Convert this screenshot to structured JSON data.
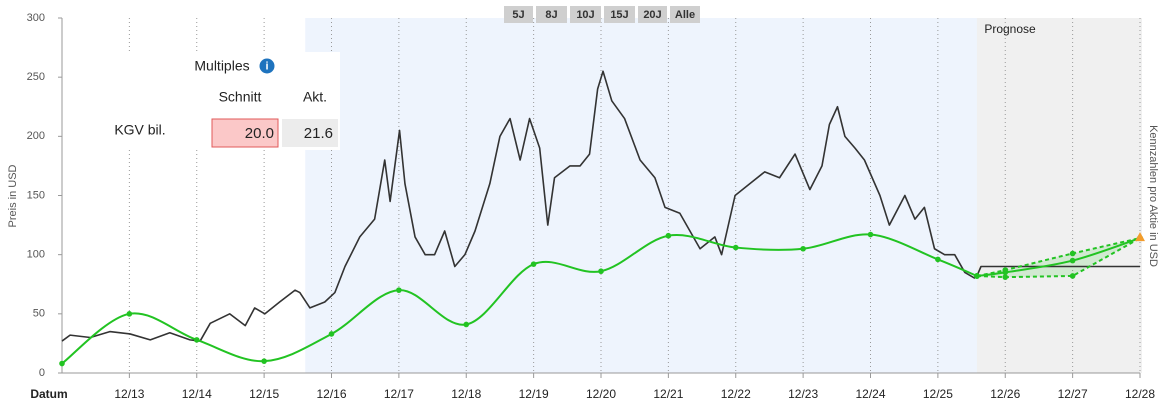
{
  "chart_data": {
    "type": "line",
    "y_label": "Preis in USD",
    "y2_label": "Kennzahlen pro Aktie in USD",
    "x_label": "Datum",
    "forecast_label": "Prognose",
    "range_buttons": [
      "5J",
      "8J",
      "10J",
      "15J",
      "20J",
      "Alle"
    ],
    "multiples": {
      "title": "Multiples",
      "headers": [
        "Schnitt",
        "Akt."
      ],
      "row_label": "KGV bil.",
      "cells": [
        "20.0",
        "21.6"
      ]
    },
    "xlim": [
      2012.92,
      2028.92
    ],
    "ylim": [
      0,
      300
    ],
    "yticks": [
      0,
      50,
      100,
      150,
      200,
      250,
      300
    ],
    "xticks": [
      {
        "value": 2013.92,
        "label": "12/13"
      },
      {
        "value": 2014.92,
        "label": "12/14"
      },
      {
        "value": 2015.92,
        "label": "12/15"
      },
      {
        "value": 2016.92,
        "label": "12/16"
      },
      {
        "value": 2017.92,
        "label": "12/17"
      },
      {
        "value": 2018.92,
        "label": "12/18"
      },
      {
        "value": 2019.92,
        "label": "12/19"
      },
      {
        "value": 2020.92,
        "label": "12/20"
      },
      {
        "value": 2021.92,
        "label": "12/21"
      },
      {
        "value": 2022.92,
        "label": "12/22"
      },
      {
        "value": 2023.92,
        "label": "12/23"
      },
      {
        "value": 2024.92,
        "label": "12/24"
      },
      {
        "value": 2025.92,
        "label": "12/25"
      },
      {
        "value": 2026.92,
        "label": "12/26"
      },
      {
        "value": 2027.92,
        "label": "12/27"
      },
      {
        "value": 2028.92,
        "label": "12/28"
      }
    ],
    "shaded_range": [
      2016.53,
      2026.5
    ],
    "forecast_range": [
      2026.5,
      2028.92
    ],
    "series": [
      {
        "color": "#333333",
        "dash": false,
        "smooth": false,
        "markers": false,
        "x": [
          2012.92,
          2013.04,
          2013.34,
          2013.63,
          2013.93,
          2014.23,
          2014.52,
          2014.82,
          2014.97,
          2015.12,
          2015.41,
          2015.64,
          2015.78,
          2015.93,
          2016.15,
          2016.38,
          2016.45,
          2016.6,
          2016.82,
          2016.97,
          2017.12,
          2017.34,
          2017.56,
          2017.71,
          2017.79,
          2017.93,
          2018.01,
          2018.16,
          2018.31,
          2018.45,
          2018.6,
          2018.75,
          2018.9,
          2019.05,
          2019.27,
          2019.42,
          2019.57,
          2019.72,
          2019.86,
          2020.01,
          2020.13,
          2020.23,
          2020.46,
          2020.61,
          2020.75,
          2020.87,
          2020.95,
          2021.08,
          2021.27,
          2021.5,
          2021.72,
          2021.87,
          2022.09,
          2022.24,
          2022.39,
          2022.61,
          2022.71,
          2022.91,
          2023.13,
          2023.35,
          2023.57,
          2023.8,
          2024.02,
          2024.2,
          2024.31,
          2024.43,
          2024.54,
          2024.69,
          2024.83,
          2025.06,
          2025.2,
          2025.43,
          2025.58,
          2025.72,
          2025.87,
          2026.02,
          2026.17,
          2026.32,
          2026.47
        ],
        "values": [
          27,
          32,
          30,
          35,
          33,
          28,
          34,
          28,
          27,
          42,
          50,
          40,
          55,
          50,
          60,
          70,
          68,
          55,
          60,
          68,
          90,
          115,
          130,
          180,
          145,
          205,
          160,
          115,
          100,
          100,
          120,
          90,
          100,
          120,
          160,
          200,
          215,
          180,
          215,
          190,
          125,
          165,
          175,
          175,
          185,
          240,
          255,
          230,
          215,
          180,
          165,
          140,
          135,
          120,
          105,
          115,
          100,
          150,
          160,
          170,
          165,
          185,
          155,
          175,
          210,
          225,
          200,
          190,
          180,
          150,
          125,
          150,
          130,
          140,
          105,
          100,
          100,
          85,
          80
        ]
      },
      {
        "color": "#333333",
        "dash": false,
        "smooth": false,
        "markers": false,
        "x": [
          2026.5,
          2026.56,
          2028.92
        ],
        "values": [
          82,
          90,
          90
        ]
      },
      {
        "color": "#22c322",
        "dash": false,
        "smooth": true,
        "markers": true,
        "x": [
          2012.92,
          2013.92,
          2014.92,
          2015.92,
          2016.92,
          2017.92,
          2018.92,
          2019.92,
          2020.92,
          2021.92,
          2022.92,
          2023.92,
          2024.92,
          2025.92,
          2026.5
        ],
        "values": [
          8,
          50,
          28,
          10,
          33,
          70,
          41,
          92,
          86,
          116,
          106,
          105,
          117,
          96,
          82
        ]
      },
      {
        "color": "#22c322",
        "dash": false,
        "smooth": true,
        "markers": true,
        "x": [
          2026.5,
          2026.92,
          2027.92,
          2028.92
        ],
        "values": [
          82,
          85,
          95,
          114
        ]
      },
      {
        "color": "#22c322",
        "dash": true,
        "smooth": true,
        "markers": true,
        "x": [
          2026.5,
          2026.92,
          2027.92,
          2028.92
        ],
        "values": [
          82,
          87,
          101,
          114
        ]
      },
      {
        "color": "#22c322",
        "dash": true,
        "smooth": false,
        "markers": true,
        "x": [
          2026.5,
          2026.92,
          2027.92,
          2028.92
        ],
        "values": [
          82,
          81,
          82,
          114
        ]
      }
    ]
  }
}
